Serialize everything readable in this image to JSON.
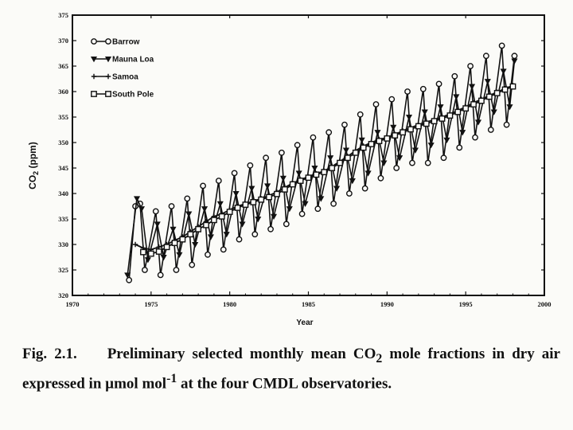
{
  "chart_data": {
    "type": "line",
    "title": "",
    "xlabel": "Year",
    "ylabel": "CO2 (ppm)",
    "xlim": [
      1970,
      2000
    ],
    "ylim": [
      320,
      375
    ],
    "xticks": [
      1970,
      1975,
      1980,
      1985,
      1990,
      1995,
      2000
    ],
    "yticks": [
      320,
      325,
      330,
      335,
      340,
      345,
      350,
      355,
      360,
      365,
      370,
      375
    ],
    "grid": false,
    "legend_position": "top-left",
    "series": [
      {
        "name": "Barrow",
        "marker": "circle",
        "seasonal": true,
        "x": [
          1973.6,
          1974.0,
          1974.3,
          1974.6,
          1975.3,
          1975.6,
          1976.3,
          1976.6,
          1977.3,
          1977.6,
          1978.3,
          1978.6,
          1979.3,
          1979.6,
          1980.3,
          1980.6,
          1981.3,
          1981.6,
          1982.3,
          1982.6,
          1983.3,
          1983.6,
          1984.3,
          1984.6,
          1985.3,
          1985.6,
          1986.3,
          1986.6,
          1987.3,
          1987.6,
          1988.3,
          1988.6,
          1989.3,
          1989.6,
          1990.3,
          1990.6,
          1991.3,
          1991.6,
          1992.3,
          1992.6,
          1993.3,
          1993.6,
          1994.3,
          1994.6,
          1995.3,
          1995.6,
          1996.3,
          1996.6,
          1997.3,
          1997.6,
          1998.1
        ],
        "values": [
          323,
          337.5,
          338,
          325,
          336.5,
          324,
          337.5,
          325,
          339,
          326,
          341.5,
          328,
          342.5,
          329,
          344,
          331,
          345.5,
          332,
          347,
          333,
          348,
          334,
          349.5,
          336,
          351,
          337,
          352,
          338,
          353.5,
          340,
          355.5,
          341,
          357.5,
          343,
          358.5,
          345,
          360,
          346,
          360.5,
          346,
          361.5,
          347,
          363,
          349,
          365,
          351,
          367,
          352.5,
          369,
          353.5,
          367
        ]
      },
      {
        "name": "Mauna Loa",
        "marker": "triangle-down",
        "seasonal": true,
        "x": [
          1973.5,
          1974.1,
          1974.4,
          1974.8,
          1975.4,
          1975.8,
          1976.4,
          1976.8,
          1977.4,
          1977.8,
          1978.4,
          1978.8,
          1979.4,
          1979.8,
          1980.4,
          1980.8,
          1981.4,
          1981.8,
          1982.4,
          1982.8,
          1983.4,
          1983.8,
          1984.4,
          1984.8,
          1985.4,
          1985.8,
          1986.4,
          1986.8,
          1987.4,
          1987.8,
          1988.4,
          1988.8,
          1989.4,
          1989.8,
          1990.4,
          1990.8,
          1991.4,
          1991.8,
          1992.4,
          1992.8,
          1993.4,
          1993.8,
          1994.4,
          1994.8,
          1995.4,
          1995.8,
          1996.4,
          1996.8,
          1997.4,
          1997.8,
          1998.1
        ],
        "values": [
          324,
          339,
          337,
          327,
          334,
          327.5,
          333,
          328,
          336,
          330,
          337,
          331.5,
          338,
          332,
          340,
          334,
          341,
          335,
          341.5,
          335.5,
          343,
          337,
          344,
          338,
          345,
          339,
          347,
          341,
          348.5,
          342.5,
          350.5,
          344,
          352,
          346,
          353,
          347,
          355,
          348.5,
          356,
          349.5,
          357,
          350.5,
          359,
          352,
          361,
          354,
          362,
          356,
          364,
          357,
          366
        ]
      },
      {
        "name": "Samoa",
        "marker": "plus",
        "seasonal": false,
        "x": [
          1974.0,
          1974.5,
          1975.0,
          1975.5,
          1976.0,
          1976.5,
          1977.0,
          1977.5,
          1978.0,
          1978.5,
          1979.0,
          1979.5,
          1980.0,
          1980.5,
          1981.0,
          1981.5,
          1982.0,
          1982.5,
          1983.0,
          1983.5,
          1984.0,
          1984.5,
          1985.0,
          1985.5,
          1986.0,
          1986.5,
          1987.0,
          1987.5,
          1988.0,
          1988.5,
          1989.0,
          1989.5,
          1990.0,
          1990.5,
          1991.0,
          1991.5,
          1992.0,
          1992.5,
          1993.0,
          1993.5,
          1994.0,
          1994.5,
          1995.0,
          1995.5,
          1996.0,
          1996.5,
          1997.0,
          1997.5,
          1998.0
        ],
        "values": [
          330,
          329.3,
          329,
          329.5,
          330,
          330.8,
          331.5,
          332.5,
          333.5,
          334.5,
          335.5,
          336,
          336.8,
          337.5,
          338,
          338.5,
          339,
          339.6,
          340.3,
          341.2,
          342,
          342.7,
          343.3,
          343.9,
          344.4,
          345.3,
          346.3,
          347.3,
          348.4,
          349.3,
          350,
          350.6,
          351,
          351.6,
          352.3,
          352.9,
          353.5,
          354,
          354.5,
          355,
          355.6,
          356.3,
          357,
          357.8,
          358.5,
          359.2,
          359.9,
          360.6,
          361.2
        ]
      },
      {
        "name": "South Pole",
        "marker": "square",
        "seasonal": false,
        "x": [
          1974.5,
          1975.0,
          1975.5,
          1976.0,
          1976.5,
          1977.0,
          1977.5,
          1978.0,
          1978.5,
          1979.0,
          1979.5,
          1980.0,
          1980.5,
          1981.0,
          1981.5,
          1982.0,
          1982.5,
          1983.0,
          1983.5,
          1984.0,
          1984.5,
          1985.0,
          1985.5,
          1986.0,
          1986.5,
          1987.0,
          1987.5,
          1988.0,
          1988.5,
          1989.0,
          1989.5,
          1990.0,
          1990.5,
          1991.0,
          1991.5,
          1992.0,
          1992.5,
          1993.0,
          1993.5,
          1994.0,
          1994.5,
          1995.0,
          1995.5,
          1996.0,
          1996.5,
          1997.0,
          1997.5,
          1998.0
        ],
        "values": [
          328.5,
          328.2,
          328.6,
          329.5,
          330.3,
          331,
          332,
          333,
          333.8,
          334.8,
          335.5,
          336.4,
          337.2,
          337.8,
          338.3,
          338.8,
          339.3,
          339.9,
          340.8,
          341.8,
          342.5,
          343.1,
          343.7,
          344.2,
          345,
          346,
          347,
          348,
          349,
          349.7,
          350.3,
          350.8,
          351.4,
          352,
          352.6,
          353.2,
          353.7,
          354.2,
          354.7,
          355.3,
          356,
          356.7,
          357.5,
          358.2,
          359,
          359.7,
          360.4,
          361
        ]
      }
    ]
  },
  "caption": {
    "label": "Fig.  2.1.",
    "text_before": "Preliminary selected monthly mean CO",
    "sub": "2",
    "text_after": " mole fractions in dry air expressed in µmol mol",
    "sup": "-1",
    "text_end": " at the four CMDL observatories."
  }
}
